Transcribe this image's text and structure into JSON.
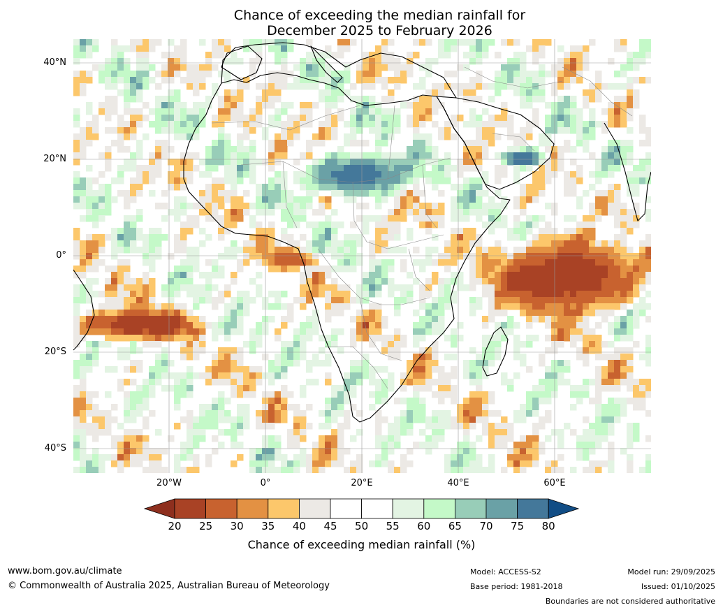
{
  "title_line1": "Chance of exceeding the median rainfall for",
  "title_line2": "December 2025 to February 2026",
  "map": {
    "lat_labels": [
      "40°N",
      "20°N",
      "0°",
      "20°S",
      "40°S"
    ],
    "lat_values": [
      40,
      20,
      0,
      -20,
      -40
    ],
    "lon_labels": [
      "20°W",
      "0°",
      "20°E",
      "40°E",
      "60°E"
    ],
    "lon_values": [
      -20,
      0,
      20,
      40,
      60
    ],
    "extent": {
      "lon_min": -40,
      "lon_max": 80,
      "lat_min": -45,
      "lat_max": 45
    },
    "regions": [
      {
        "area": "western Indian Ocean / Horn of Africa",
        "lon": [
          45,
          78
        ],
        "lat": [
          -12,
          5
        ],
        "percent": 20
      },
      {
        "area": "Sahel (Chad/Niger)",
        "lon": [
          7,
          30
        ],
        "lat": [
          13,
          22
        ],
        "percent": 80
      },
      {
        "area": "central Atlantic band",
        "lon": [
          -40,
          -15
        ],
        "lat": [
          -17,
          -10
        ],
        "percent": 20
      },
      {
        "area": "Arabian Peninsula",
        "lon": [
          48,
          57
        ],
        "lat": [
          19,
          23
        ],
        "percent": 80
      },
      {
        "area": "Gulf of Guinea",
        "lon": [
          -2,
          10
        ],
        "lat": [
          -2,
          2
        ],
        "percent": 25
      }
    ]
  },
  "colorbar": {
    "ticks": [
      "20",
      "25",
      "30",
      "35",
      "40",
      "45",
      "50",
      "55",
      "60",
      "65",
      "70",
      "75",
      "80"
    ],
    "colors": [
      "#8e2f1e",
      "#a94225",
      "#c8622f",
      "#e39143",
      "#fcc76b",
      "#ece9e5",
      "#ffffff",
      "#ffffff",
      "#e3f4e3",
      "#c4f9c8",
      "#98cdb8",
      "#6aa1a6",
      "#44789a",
      "#114d85"
    ],
    "label": "Chance of exceeding median rainfall (%)"
  },
  "footer": {
    "website": "www.bom.gov.au/climate",
    "copyright": "© Commonwealth of Australia 2025, Australian Bureau of Meteorology",
    "model": "Model: ACCESS-S2",
    "base_period": "Base period: 1981-2018",
    "model_run": "Model run: 29/09/2025",
    "issued": "Issued: 01/10/2025",
    "disclaimer": "Boundaries are not considered authoritative"
  }
}
